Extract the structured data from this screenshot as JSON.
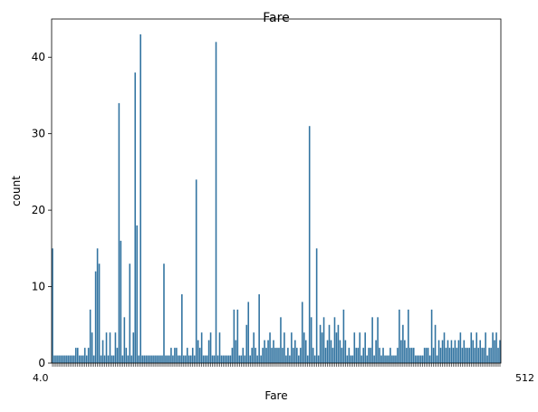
{
  "chart_data": {
    "type": "bar",
    "title": "Fare",
    "xlabel": "Fare",
    "ylabel": "count",
    "ylim": [
      0,
      45
    ],
    "yticks": [
      0,
      10,
      20,
      30,
      40
    ],
    "grid": false,
    "legend": "none",
    "bar_color": "#3274a1",
    "x_tick_labels_left": "4.0",
    "x_tick_labels_right": "512",
    "values": [
      15,
      1,
      1,
      1,
      1,
      1,
      1,
      1,
      1,
      1,
      1,
      1,
      1,
      2,
      2,
      1,
      1,
      1,
      2,
      1,
      2,
      7,
      4,
      1,
      12,
      15,
      13,
      1,
      3,
      1,
      4,
      1,
      4,
      1,
      1,
      4,
      2,
      34,
      16,
      1,
      6,
      2,
      1,
      13,
      1,
      4,
      38,
      18,
      1,
      43,
      1,
      1,
      1,
      1,
      1,
      1,
      1,
      1,
      1,
      1,
      1,
      1,
      13,
      1,
      1,
      1,
      2,
      1,
      2,
      2,
      1,
      1,
      9,
      1,
      1,
      2,
      1,
      1,
      2,
      1,
      24,
      3,
      2,
      4,
      1,
      1,
      1,
      3,
      4,
      1,
      1,
      42,
      1,
      4,
      1,
      1,
      1,
      1,
      1,
      1,
      2,
      7,
      3,
      7,
      1,
      1,
      2,
      1,
      5,
      8,
      1,
      2,
      4,
      2,
      1,
      9,
      1,
      2,
      3,
      2,
      3,
      4,
      2,
      3,
      2,
      2,
      2,
      6,
      2,
      4,
      1,
      2,
      1,
      4,
      2,
      3,
      2,
      1,
      2,
      8,
      4,
      3,
      1,
      31,
      6,
      2,
      1,
      15,
      1,
      5,
      4,
      6,
      2,
      3,
      5,
      3,
      2,
      6,
      4,
      5,
      3,
      2,
      7,
      3,
      1,
      2,
      1,
      1,
      4,
      2,
      2,
      4,
      1,
      2,
      4,
      1,
      2,
      2,
      6,
      1,
      3,
      6,
      2,
      1,
      2,
      1,
      1,
      1,
      2,
      1,
      1,
      1,
      2,
      7,
      3,
      5,
      3,
      2,
      7,
      2,
      2,
      2,
      1,
      1,
      1,
      1,
      1,
      2,
      2,
      2,
      1,
      7,
      2,
      5,
      1,
      3,
      2,
      3,
      4,
      2,
      3,
      2,
      3,
      2,
      3,
      2,
      3,
      4,
      2,
      3,
      2,
      2,
      2,
      4,
      3,
      2,
      4,
      2,
      3,
      2,
      2,
      4,
      1,
      2,
      2,
      4,
      3,
      4,
      2,
      3
    ]
  }
}
